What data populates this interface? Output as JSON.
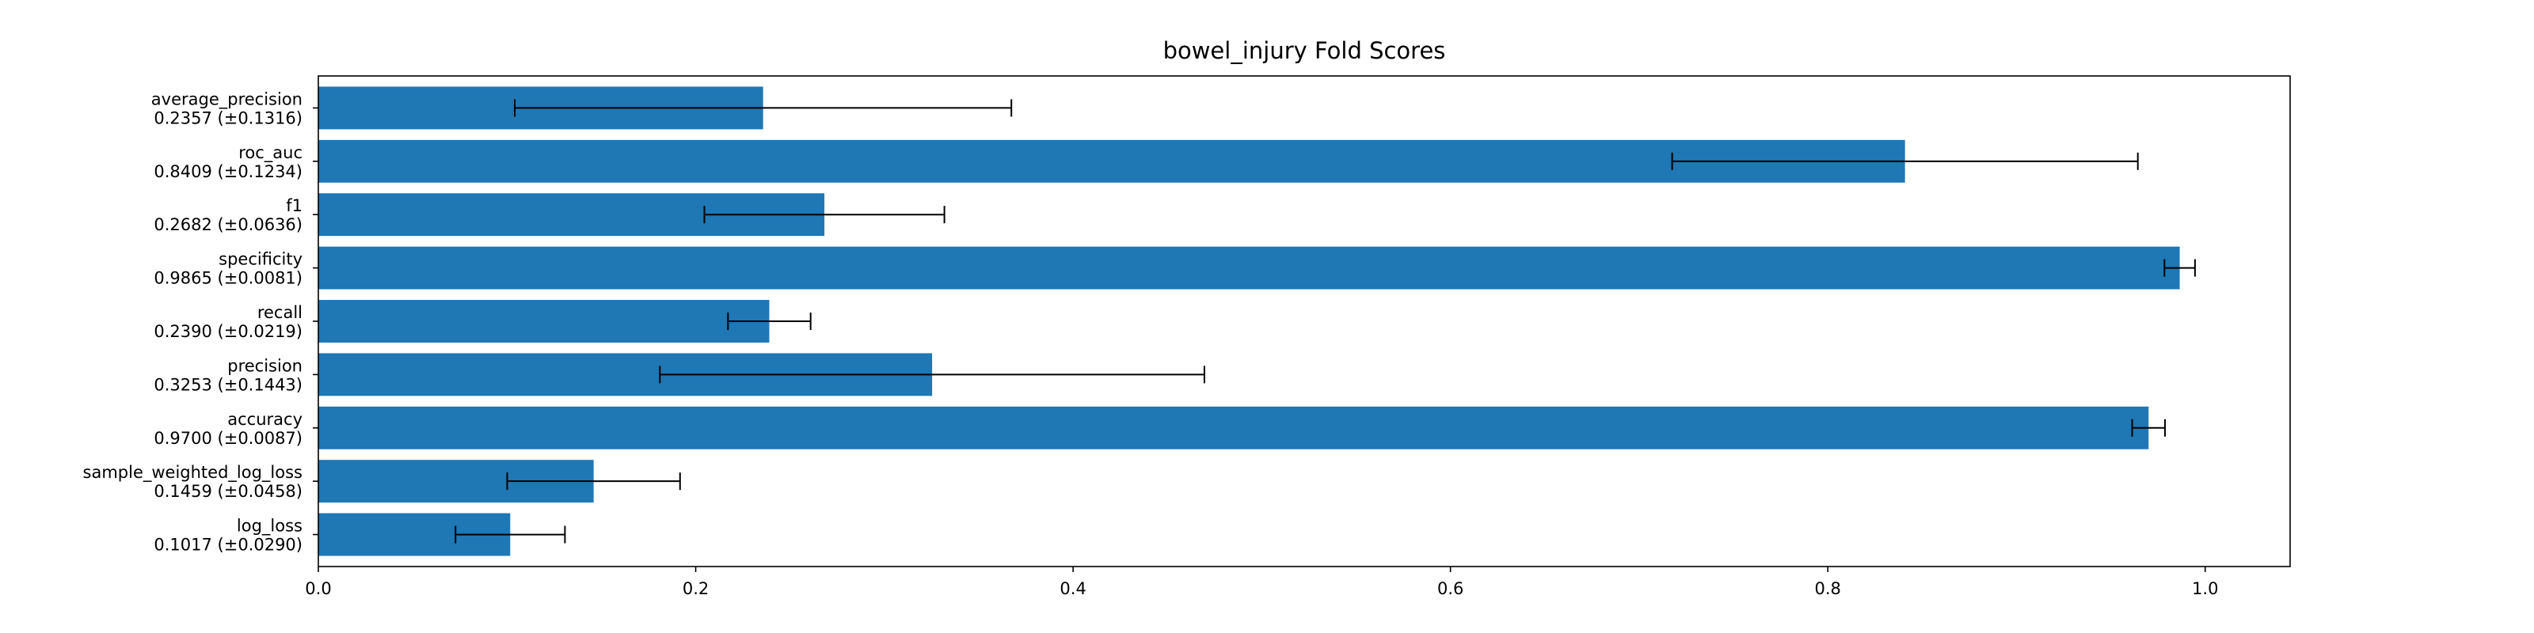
{
  "chart_data": {
    "type": "bar",
    "orientation": "horizontal",
    "title": "bowel_injury Fold Scores",
    "xlabel": "",
    "ylabel": "",
    "xlim": [
      0,
      1.045
    ],
    "xticks": [
      0.0,
      0.2,
      0.4,
      0.6,
      0.8,
      1.0
    ],
    "xtick_labels": [
      "0.0",
      "0.2",
      "0.4",
      "0.6",
      "0.8",
      "1.0"
    ],
    "grid": false,
    "bar_color": "#1f77b4",
    "errorbar_color": "#000000",
    "categories": [
      {
        "name": "average_precision",
        "label": "0.2357 (±0.1316)",
        "value": 0.2357,
        "error": 0.1316
      },
      {
        "name": "roc_auc",
        "label": "0.8409 (±0.1234)",
        "value": 0.8409,
        "error": 0.1234
      },
      {
        "name": "f1",
        "label": "0.2682 (±0.0636)",
        "value": 0.2682,
        "error": 0.0636
      },
      {
        "name": "specificity",
        "label": "0.9865 (±0.0081)",
        "value": 0.9865,
        "error": 0.0081
      },
      {
        "name": "recall",
        "label": "0.2390 (±0.0219)",
        "value": 0.239,
        "error": 0.0219
      },
      {
        "name": "precision",
        "label": "0.3253 (±0.1443)",
        "value": 0.3253,
        "error": 0.1443
      },
      {
        "name": "accuracy",
        "label": "0.9700 (±0.0087)",
        "value": 0.97,
        "error": 0.0087
      },
      {
        "name": "sample_weighted_log_loss",
        "label": "0.1459 (±0.0458)",
        "value": 0.1459,
        "error": 0.0458
      },
      {
        "name": "log_loss",
        "label": "0.1017 (±0.0290)",
        "value": 0.1017,
        "error": 0.029
      }
    ]
  }
}
